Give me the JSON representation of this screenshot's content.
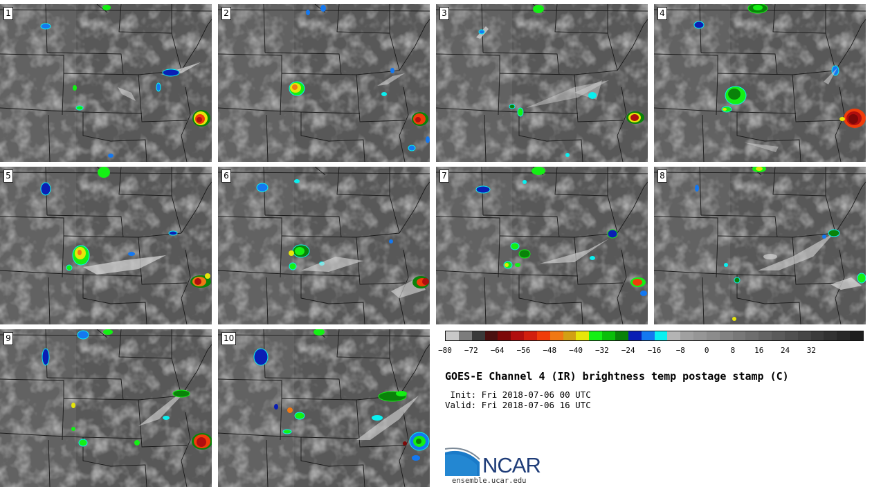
{
  "panels": [
    {
      "label": "1"
    },
    {
      "label": "2"
    },
    {
      "label": "3"
    },
    {
      "label": "4"
    },
    {
      "label": "5"
    },
    {
      "label": "6"
    },
    {
      "label": "7"
    },
    {
      "label": "8"
    },
    {
      "label": "9"
    },
    {
      "label": "10"
    }
  ],
  "colorbar": {
    "colors": [
      "#c8c8c8",
      "#7c7c7c",
      "#3a3a3a",
      "#4a1010",
      "#7c0808",
      "#b00e0e",
      "#d21e0e",
      "#f03c0a",
      "#f07814",
      "#d2a014",
      "#e6e60a",
      "#14f014",
      "#0abe0a",
      "#0a820a",
      "#0a1eb4",
      "#1478f0",
      "#0af0f0",
      "#b4b4b4",
      "#a0a0a0",
      "#969696",
      "#8c8c8c",
      "#828282",
      "#787878",
      "#6e6e6e",
      "#646464",
      "#5a5a5a",
      "#505050",
      "#464646",
      "#3c3c3c",
      "#323232",
      "#282828",
      "#1e1e1e"
    ],
    "ticks": [
      "−80",
      "−72",
      "−64",
      "−56",
      "−48",
      "−40",
      "−32",
      "−24",
      "−16",
      "−8",
      "0",
      "8",
      "16",
      "24",
      "32"
    ]
  },
  "title": "GOES-E Channel 4 (IR) brightness temp postage stamp (C)",
  "init": " Init: Fri 2018-07-06 00 UTC",
  "valid": "Valid: Fri 2018-07-06 16 UTC",
  "logo_text": "NCAR",
  "url": "ensemble.ucar.edu"
}
